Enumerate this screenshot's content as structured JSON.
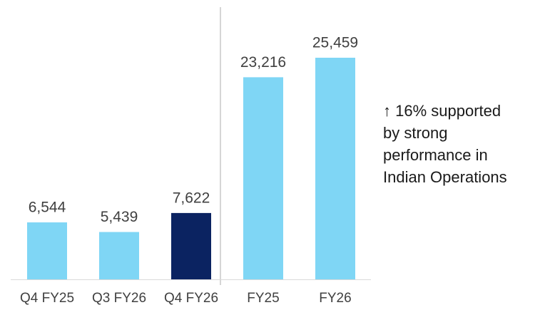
{
  "chart_data": {
    "type": "bar",
    "categories": [
      "Q4 FY25",
      "Q3 FY26",
      "Q4 FY26",
      "FY25",
      "FY26"
    ],
    "values": [
      6544,
      5439,
      7622,
      23216,
      25459
    ],
    "value_labels": [
      "6,544",
      "5,439",
      "7,622",
      "23,216",
      "25,459"
    ],
    "colors": [
      "#7fd6f5",
      "#7fd6f5",
      "#0b2361",
      "#7fd6f5",
      "#7fd6f5"
    ],
    "annotation": [
      "↑ 16% supported",
      "by strong",
      "performance in",
      "Indian Operations"
    ]
  }
}
